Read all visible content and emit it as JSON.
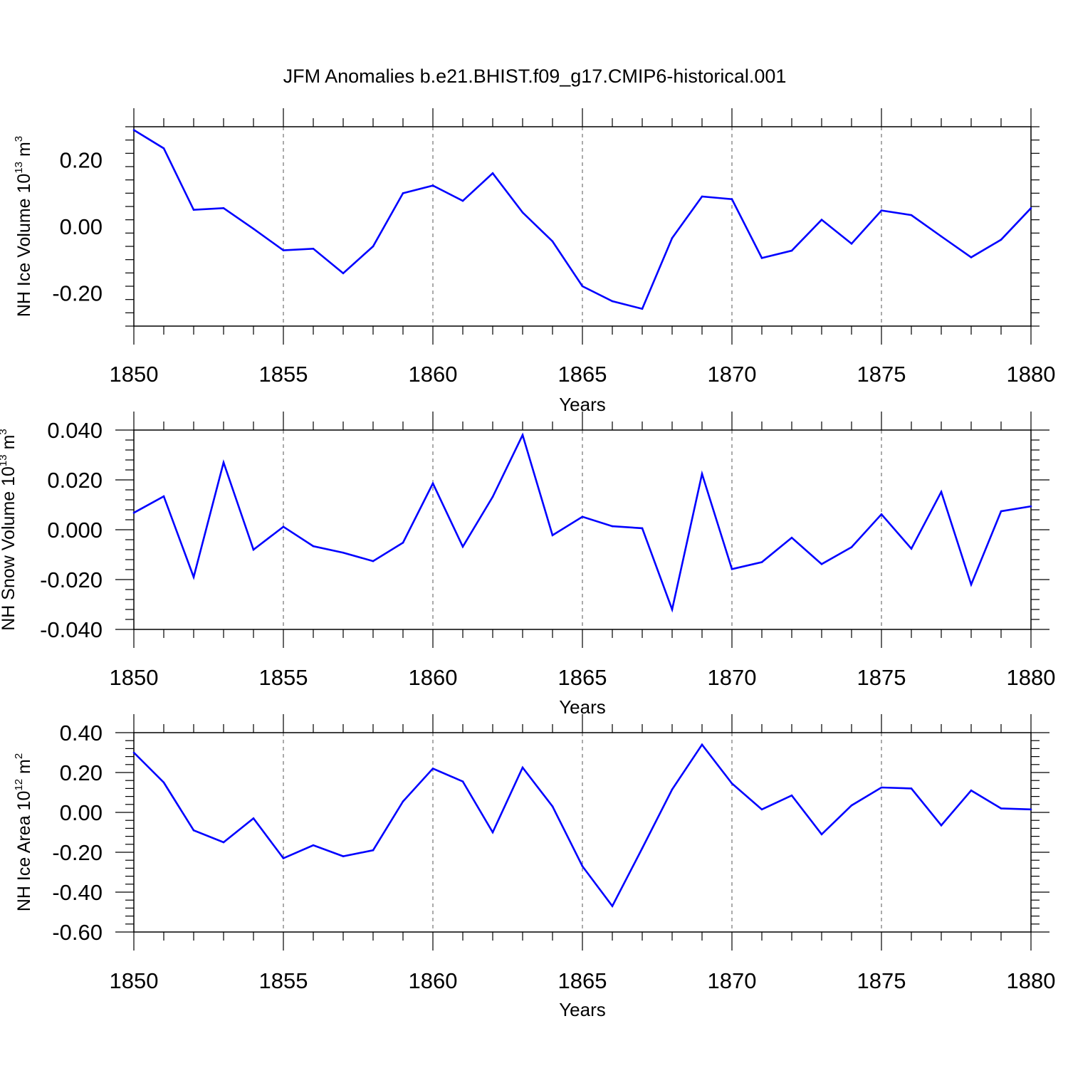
{
  "title": "JFM Anomalies b.e21.BHIST.f09_g17.CMIP6-historical.001",
  "colors": {
    "line": "#0000ff",
    "axis": "#000000",
    "grid": "#555555"
  },
  "chart_data": [
    {
      "type": "line",
      "xlabel": "Years",
      "ylabel": {
        "text": "NH Ice Volume 10",
        "exp": "13",
        "unit": " m",
        "unit_exp": "3"
      },
      "xlim": [
        1850,
        1880
      ],
      "ylim": [
        -0.3,
        0.3
      ],
      "yticks": [
        -0.2,
        0.0,
        0.2
      ],
      "ytick_labels": [
        "-0.20",
        "0.00",
        "0.20"
      ],
      "xticks": [
        1850,
        1855,
        1860,
        1865,
        1870,
        1875,
        1880
      ],
      "xtick_labels": [
        "1850",
        "1855",
        "1860",
        "1865",
        "1870",
        "1875",
        "1880"
      ],
      "grid": "vertical dashed at major x ticks",
      "series": [
        {
          "name": "NH Ice Volume",
          "x": [
            1850,
            1851,
            1852,
            1853,
            1854,
            1855,
            1856,
            1857,
            1858,
            1859,
            1860,
            1861,
            1862,
            1863,
            1864,
            1865,
            1866,
            1867,
            1868,
            1869,
            1870,
            1871,
            1872,
            1873,
            1874,
            1875,
            1876,
            1877,
            1878,
            1879,
            1880
          ],
          "values": [
            0.29,
            0.235,
            0.05,
            0.055,
            -0.007,
            -0.072,
            -0.067,
            -0.141,
            -0.06,
            0.1,
            0.123,
            0.077,
            0.16,
            0.042,
            -0.045,
            -0.18,
            -0.225,
            -0.248,
            -0.035,
            0.09,
            0.082,
            -0.095,
            -0.073,
            0.02,
            -0.052,
            0.048,
            0.034,
            -0.03,
            -0.093,
            -0.04,
            0.055
          ]
        }
      ]
    },
    {
      "type": "line",
      "xlabel": "Years",
      "ylabel": {
        "text": "NH Snow Volume 10",
        "exp": "13",
        "unit": " m",
        "unit_exp": "3"
      },
      "xlim": [
        1850,
        1880
      ],
      "ylim": [
        -0.04,
        0.04
      ],
      "yticks": [
        -0.04,
        -0.02,
        0.0,
        0.02,
        0.04
      ],
      "ytick_labels": [
        "-0.040",
        "-0.020",
        "0.000",
        "0.020",
        "0.040"
      ],
      "xticks": [
        1850,
        1855,
        1860,
        1865,
        1870,
        1875,
        1880
      ],
      "xtick_labels": [
        "1850",
        "1855",
        "1860",
        "1865",
        "1870",
        "1875",
        "1880"
      ],
      "grid": "vertical dashed at major x ticks",
      "series": [
        {
          "name": "NH Snow Volume",
          "x": [
            1850,
            1851,
            1852,
            1853,
            1854,
            1855,
            1856,
            1857,
            1858,
            1859,
            1860,
            1861,
            1862,
            1863,
            1864,
            1865,
            1866,
            1867,
            1868,
            1869,
            1870,
            1871,
            1872,
            1873,
            1874,
            1875,
            1876,
            1877,
            1878,
            1879,
            1880
          ],
          "values": [
            0.0068,
            0.0134,
            -0.019,
            0.027,
            -0.008,
            0.0012,
            -0.0066,
            -0.0092,
            -0.0126,
            -0.0052,
            0.0186,
            -0.0068,
            0.0132,
            0.038,
            -0.0022,
            0.0052,
            0.0014,
            0.0006,
            -0.032,
            0.0224,
            -0.0158,
            -0.013,
            -0.0032,
            -0.0138,
            -0.007,
            0.0062,
            -0.0076,
            0.0152,
            -0.022,
            0.0074,
            0.0094
          ]
        }
      ]
    },
    {
      "type": "line",
      "xlabel": "Years",
      "ylabel": {
        "text": "NH Ice Area 10",
        "exp": "12",
        "unit": " m",
        "unit_exp": "2"
      },
      "xlim": [
        1850,
        1880
      ],
      "ylim": [
        -0.6,
        0.4
      ],
      "yticks": [
        -0.6,
        -0.4,
        -0.2,
        0.0,
        0.2,
        0.4
      ],
      "ytick_labels": [
        "-0.60",
        "-0.40",
        "-0.20",
        "0.00",
        "0.20",
        "0.40"
      ],
      "xticks": [
        1850,
        1855,
        1860,
        1865,
        1870,
        1875,
        1880
      ],
      "xtick_labels": [
        "1850",
        "1855",
        "1860",
        "1865",
        "1870",
        "1875",
        "1880"
      ],
      "grid": "vertical dashed at major x ticks",
      "series": [
        {
          "name": "NH Ice Area",
          "x": [
            1850,
            1851,
            1852,
            1853,
            1854,
            1855,
            1856,
            1857,
            1858,
            1859,
            1860,
            1861,
            1862,
            1863,
            1864,
            1865,
            1866,
            1867,
            1868,
            1869,
            1870,
            1871,
            1872,
            1873,
            1874,
            1875,
            1876,
            1877,
            1878,
            1879,
            1880
          ],
          "values": [
            0.3,
            0.15,
            -0.09,
            -0.15,
            -0.03,
            -0.23,
            -0.165,
            -0.22,
            -0.19,
            0.055,
            0.22,
            0.155,
            -0.1,
            0.225,
            0.03,
            -0.27,
            -0.47,
            -0.18,
            0.115,
            0.34,
            0.145,
            0.015,
            0.085,
            -0.11,
            0.035,
            0.125,
            0.12,
            -0.065,
            0.11,
            0.02,
            0.015
          ]
        }
      ]
    }
  ]
}
